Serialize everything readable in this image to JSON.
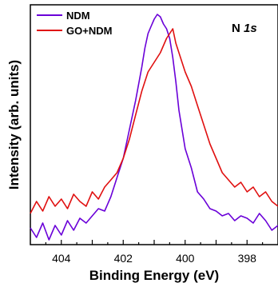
{
  "chart_data": {
    "type": "line",
    "xlabel": "Binding Energy (eV)",
    "ylabel": "Intensity (arb. units)",
    "annotation": {
      "label": "N ",
      "italic": "1s"
    },
    "x_reversed": true,
    "xlim": [
      405,
      397
    ],
    "ylim": [
      0,
      100
    ],
    "x_ticks": [
      404,
      402,
      400,
      398
    ],
    "x_tick_labels": [
      "404",
      "402",
      "400",
      "398"
    ],
    "legend_position": "top-left",
    "grid": false,
    "series": [
      {
        "name": "NDM",
        "color": "#6a00d8",
        "x": [
          405.0,
          404.8,
          404.6,
          404.4,
          404.2,
          404.0,
          403.8,
          403.6,
          403.4,
          403.2,
          403.0,
          402.8,
          402.6,
          402.4,
          402.2,
          402.0,
          401.8,
          401.6,
          401.4,
          401.3,
          401.2,
          401.1,
          401.0,
          400.9,
          400.8,
          400.7,
          400.6,
          400.5,
          400.4,
          400.3,
          400.2,
          400.0,
          399.8,
          399.6,
          399.4,
          399.2,
          399.0,
          398.8,
          398.6,
          398.4,
          398.2,
          398.0,
          397.8,
          397.6,
          397.4,
          397.2,
          397.0
        ],
        "y": [
          7,
          3,
          9,
          2,
          8,
          4,
          10,
          6,
          11,
          9,
          12,
          15,
          14,
          20,
          28,
          36,
          48,
          60,
          74,
          82,
          88,
          91,
          94,
          96,
          95,
          92,
          90,
          86,
          78,
          68,
          56,
          40,
          32,
          22,
          19,
          15,
          14,
          12,
          13,
          10,
          12,
          11,
          9,
          13,
          10,
          6,
          8
        ]
      },
      {
        "name": "GO+NDM",
        "color": "#e01010",
        "x": [
          405.0,
          404.8,
          404.6,
          404.4,
          404.2,
          404.0,
          403.8,
          403.6,
          403.4,
          403.2,
          403.0,
          402.8,
          402.6,
          402.4,
          402.2,
          402.0,
          401.8,
          401.6,
          401.4,
          401.2,
          401.0,
          400.8,
          400.6,
          400.5,
          400.4,
          400.3,
          400.2,
          400.0,
          399.8,
          399.6,
          399.4,
          399.2,
          399.0,
          398.8,
          398.6,
          398.4,
          398.2,
          398.0,
          397.8,
          397.6,
          397.4,
          397.2,
          397.0
        ],
        "y": [
          13,
          18,
          14,
          20,
          16,
          19,
          15,
          21,
          18,
          16,
          22,
          19,
          24,
          27,
          30,
          36,
          44,
          54,
          64,
          72,
          76,
          80,
          86,
          88,
          90,
          84,
          80,
          72,
          66,
          58,
          50,
          42,
          36,
          30,
          27,
          24,
          26,
          22,
          24,
          20,
          22,
          18,
          16
        ]
      }
    ]
  }
}
